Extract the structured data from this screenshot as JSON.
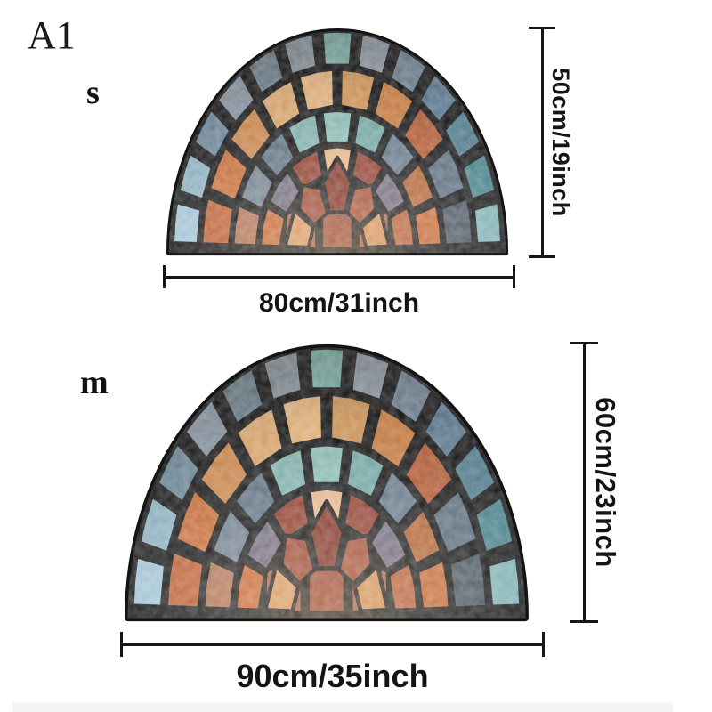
{
  "page": {
    "variant_label": "A1",
    "background": "#ffffff",
    "line_color": "#161616",
    "bottom_strip_color": "#f2f7f3"
  },
  "sizes": [
    {
      "size_label": "s",
      "width_label": "80cm/31inch",
      "height_label": "50cm/19inch"
    },
    {
      "size_label": "m",
      "width_label": "90cm/35inch",
      "height_label": "60cm/23inch"
    }
  ],
  "mosaic": {
    "grout": "#141414",
    "rings": [
      {
        "r0": 0.845,
        "r1": 1.0,
        "colors": [
          "#a3c6d8",
          "#8fb4c4",
          "#6c8899",
          "#8a98a5",
          "#70838f",
          "#8e9aa2",
          "#85bab2",
          "#98a2ae",
          "#76899c",
          "#5f7e98",
          "#527f91",
          "#47858e",
          "#7fb3b6"
        ]
      },
      {
        "r0": 0.655,
        "r1": 0.825,
        "colors": [
          "#bb5c2f",
          "#c96a33",
          "#d0884a",
          "#e3aa6e",
          "#ecb97e",
          "#d89a58",
          "#cf7e3f",
          "#b65a31",
          "#5a6c7e",
          "#47525e"
        ]
      },
      {
        "r0": 0.49,
        "r1": 0.635,
        "colors": [
          "#ad6e4e",
          "#6e7c8c",
          "#5f7182",
          "#82b4ae",
          "#8fc0b8",
          "#74aaa8",
          "#66788a",
          "#b0612f",
          "#c2652f"
        ]
      },
      {
        "r0": 0.345,
        "r1": 0.47,
        "colors": [
          "#c4622f",
          "#6b6577",
          "#8e3b2a",
          "#e7b68a",
          "#8e3b2a",
          "#6b6577",
          "#b35934"
        ]
      }
    ],
    "arch": {
      "r0": 0.175,
      "r1": 0.315,
      "apex": 0.42,
      "colors": [
        "#d3945c",
        "#96402c",
        "#7c2d20",
        "#a04a30",
        "#cf8a50"
      ]
    },
    "base_row": {
      "height": 0.165,
      "half_span": 0.33,
      "colors": [
        "#9c5a3c",
        "#93402c",
        "#9c5a3c"
      ]
    }
  }
}
